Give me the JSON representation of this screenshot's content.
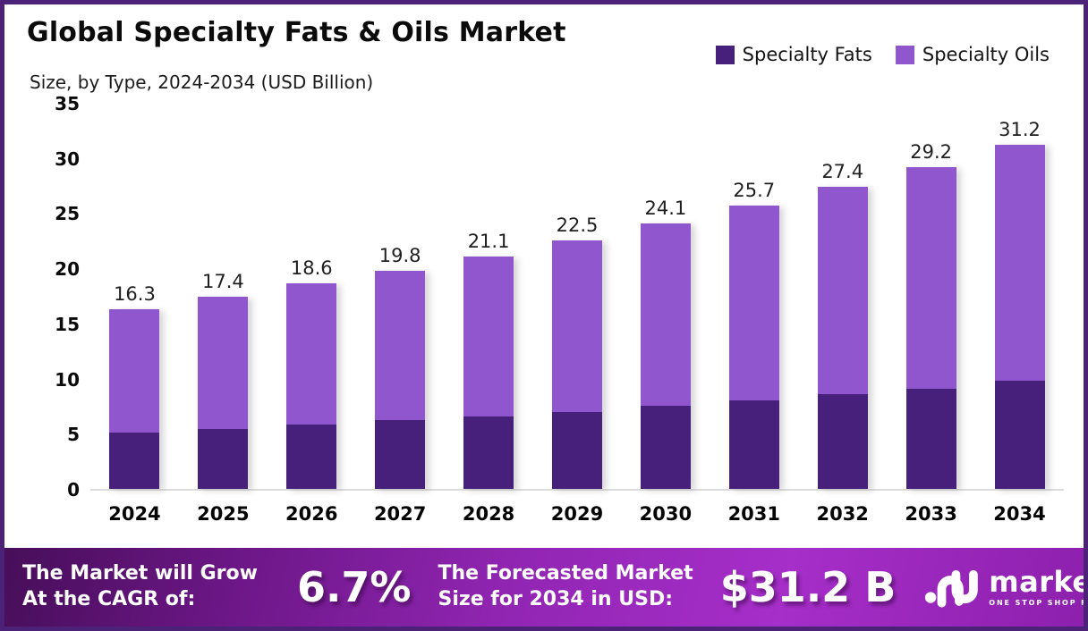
{
  "header": {
    "title": "Global Specialty Fats & Oils Market",
    "subtitle": "Size, by Type, 2024-2034 (USD Billion)"
  },
  "legend": [
    {
      "label": "Specialty Fats",
      "color": "#47207b"
    },
    {
      "label": "Specialty Oils",
      "color": "#8f56cd"
    }
  ],
  "chart_data": {
    "type": "bar",
    "stacked": true,
    "title": "Global Specialty Fats & Oils Market Size, by Type, 2024-2034 (USD Billion)",
    "categories": [
      "2024",
      "2025",
      "2026",
      "2027",
      "2028",
      "2029",
      "2030",
      "2031",
      "2032",
      "2033",
      "2034"
    ],
    "series": [
      {
        "name": "Specialty Fats",
        "color": "#47207b",
        "values": [
          5.1,
          5.4,
          5.8,
          6.2,
          6.6,
          7.0,
          7.5,
          8.0,
          8.6,
          9.1,
          9.8
        ]
      },
      {
        "name": "Specialty Oils",
        "color": "#8f56cd",
        "values": [
          11.2,
          12.0,
          12.8,
          13.6,
          14.5,
          15.5,
          16.6,
          17.7,
          18.8,
          20.1,
          21.4
        ]
      }
    ],
    "totals": [
      16.3,
      17.4,
      18.6,
      19.8,
      21.1,
      22.5,
      24.1,
      25.7,
      27.4,
      29.2,
      31.2
    ],
    "total_labels": [
      "16.3",
      "17.4",
      "18.6",
      "19.8",
      "21.1",
      "22.5",
      "24.1",
      "25.7",
      "27.4",
      "29.2",
      "31.2"
    ],
    "y_ticks": [
      35,
      30,
      25,
      20,
      15,
      10,
      5,
      0
    ],
    "ylim": [
      0,
      35
    ],
    "xlabel": "",
    "ylabel": "",
    "grid": false,
    "legend_position": "top-right"
  },
  "footer": {
    "grow_line1": "The Market will Grow",
    "grow_line2": "At the CAGR of:",
    "cagr_value": "6.7%",
    "forecast_line1": "The Forecasted Market",
    "forecast_line2": "Size for 2034 in USD:",
    "forecast_value": "$31.2 B",
    "brand_name": "market.us",
    "brand_tagline": "ONE STOP SHOP FOR THE REPORTS",
    "logo_icon": "market-us-wave-icon"
  },
  "colors": {
    "frame_border": "#4b2277",
    "axis_line": "#dcdcdc",
    "fats": "#47207b",
    "oils": "#8f56cd",
    "banner_gradient": [
      "#470e59",
      "#9226b4",
      "#a62ec9",
      "#8d20ad"
    ]
  }
}
